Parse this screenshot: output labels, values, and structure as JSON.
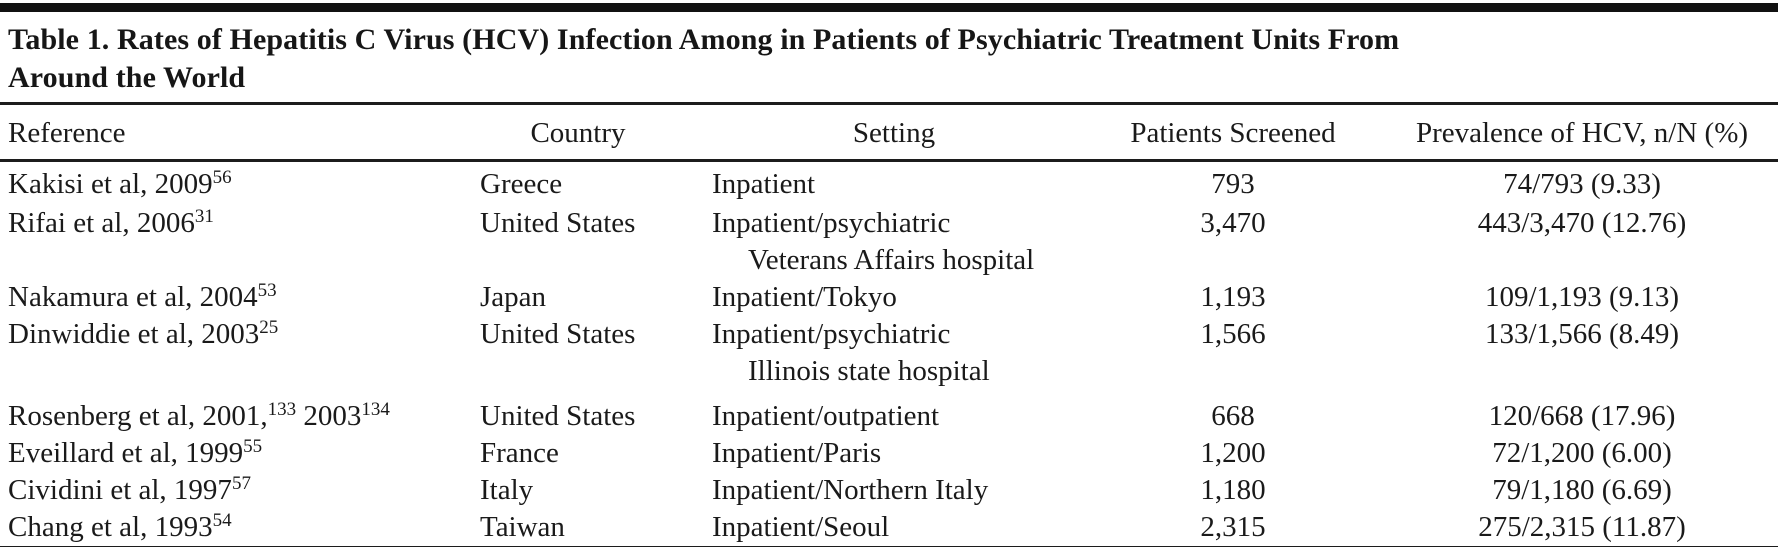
{
  "title": {
    "line1": "Table 1. Rates of Hepatitis C Virus (HCV) Infection Among in Patients of Psychiatric Treatment Units From",
    "line2": "Around the World"
  },
  "table": {
    "columns": [
      "Reference",
      "Country",
      "Setting",
      "Patients Screened",
      "Prevalence of HCV, n/N (%)"
    ],
    "rows": [
      {
        "reference_parts": [
          {
            "text": "Kakisi et al, 2009"
          },
          {
            "sup": "56"
          }
        ],
        "country": "Greece",
        "setting_lines": [
          "Inpatient"
        ],
        "patients_screened": "793",
        "prevalence": "74/793 (9.33)"
      },
      {
        "reference_parts": [
          {
            "text": "Rifai et al, 2006"
          },
          {
            "sup": "31"
          }
        ],
        "country": "United States",
        "setting_lines": [
          "Inpatient/psychiatric",
          "Veterans Affairs hospital"
        ],
        "patients_screened": "3,470",
        "prevalence": "443/3,470 (12.76)"
      },
      {
        "reference_parts": [
          {
            "text": "Nakamura et al, 2004"
          },
          {
            "sup": "53"
          }
        ],
        "country": "Japan",
        "setting_lines": [
          "Inpatient/Tokyo"
        ],
        "patients_screened": "1,193",
        "prevalence": "109/1,193 (9.13)"
      },
      {
        "reference_parts": [
          {
            "text": "Dinwiddie et al, 2003"
          },
          {
            "sup": "25"
          }
        ],
        "country": "United States",
        "setting_lines": [
          "Inpatient/psychiatric",
          "Illinois state hospital"
        ],
        "patients_screened": "1,566",
        "prevalence": "133/1,566 (8.49)"
      },
      {
        "reference_parts": [
          {
            "text": "Rosenberg et al, 2001,"
          },
          {
            "sup": "133"
          },
          {
            "text": " 2003"
          },
          {
            "sup": "134"
          }
        ],
        "country": "United States",
        "setting_lines": [
          "Inpatient/outpatient"
        ],
        "patients_screened": "668",
        "prevalence": "120/668 (17.96)"
      },
      {
        "reference_parts": [
          {
            "text": "Eveillard et al, 1999"
          },
          {
            "sup": "55"
          }
        ],
        "country": "France",
        "setting_lines": [
          "Inpatient/Paris"
        ],
        "patients_screened": "1,200",
        "prevalence": "72/1,200 (6.00)"
      },
      {
        "reference_parts": [
          {
            "text": "Cividini et al, 1997"
          },
          {
            "sup": "57"
          }
        ],
        "country": "Italy",
        "setting_lines": [
          "Inpatient/Northern Italy"
        ],
        "patients_screened": "1,180",
        "prevalence": "79/1,180 (6.69)"
      },
      {
        "reference_parts": [
          {
            "text": "Chang et al, 1993"
          },
          {
            "sup": "54"
          }
        ],
        "country": "Taiwan",
        "setting_lines": [
          "Inpatient/Seoul"
        ],
        "patients_screened": "2,315",
        "prevalence": "275/2,315 (11.87)"
      }
    ]
  },
  "colors": {
    "text": "#1a1a1a",
    "rule": "#1c1c1c",
    "top_bar": "#111111",
    "background": "#ffffff"
  }
}
